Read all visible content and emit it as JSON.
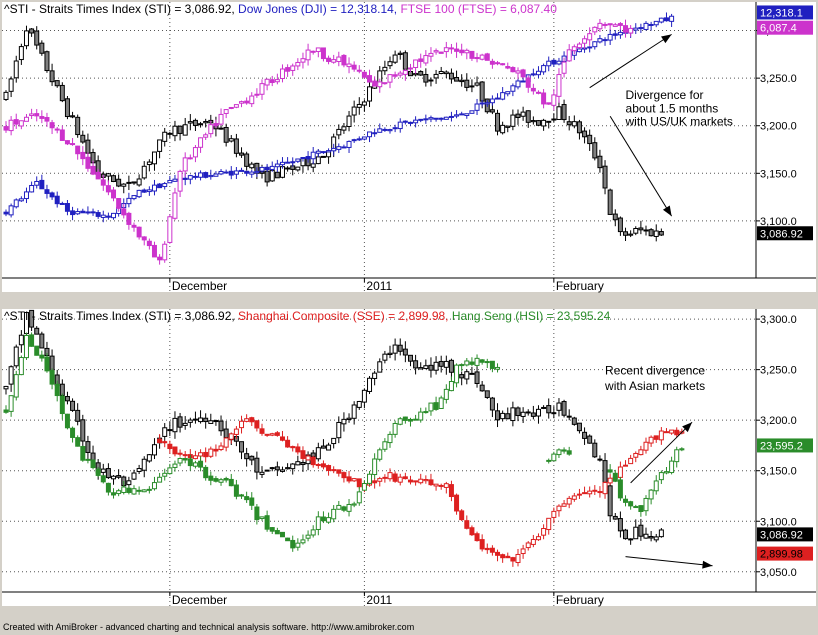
{
  "colors": {
    "background": "#ffffff",
    "frame": "#d4d0c8",
    "sti": "#000000",
    "dow": "#2020c0",
    "ftse": "#cc33cc",
    "sse": "#dd2020",
    "hsi": "#2a8c2a"
  },
  "footer": "Created with AmiBroker - advanced charting and technical analysis software. http://www.amibroker.com",
  "chart_data": [
    {
      "type": "candlestick",
      "panel": "top",
      "title_parts": [
        {
          "text": "^STI - Straits Times Index (STI) = 3,086.92, ",
          "color": "#000000"
        },
        {
          "text": "Dow Jones (DJI) = 12,318.14, ",
          "color": "#2020c0"
        },
        {
          "text": "FTSE 100 (FTSE) = 6,087.40",
          "color": "#cc33cc"
        }
      ],
      "ylim": [
        3040,
        3330
      ],
      "yticks": [
        3300,
        3250,
        3200,
        3150,
        3100
      ],
      "ytick_labels": [
        "3,300.0",
        "3,250.0",
        "3,200.0",
        "3,150.0",
        "3,100.0"
      ],
      "x_labels": [
        {
          "index": 32,
          "label": "December"
        },
        {
          "index": 70,
          "label": "2011"
        },
        {
          "index": 107,
          "label": "February"
        }
      ],
      "price_tags": [
        {
          "label": "12,318.1",
          "value": 3319,
          "bg": "#2020c0",
          "fg": "#ffffff"
        },
        {
          "label": "6,087.4",
          "value": 3303,
          "bg": "#cc33cc",
          "fg": "#ffffff"
        },
        {
          "label": "3,086.92",
          "value": 3087,
          "bg": "#000000",
          "fg": "#ffffff"
        }
      ],
      "annotations": [
        {
          "text": "Divergence for",
          "value": 3228,
          "index": 121
        },
        {
          "text": "about 1.5 months",
          "value": 3214,
          "index": 121
        },
        {
          "text": "with US/UK markets",
          "value": 3200,
          "index": 121
        }
      ],
      "arrows": [
        {
          "from": [
            114,
            3240
          ],
          "to": [
            130,
            3296
          ]
        },
        {
          "from": [
            118,
            3210
          ],
          "to": [
            130,
            3105
          ]
        }
      ],
      "series": [
        {
          "name": "STI",
          "color": "#000000",
          "hollow_fill": "#ffffff",
          "down_fill": "#808080",
          "segments": [
            {
              "start": 0,
              "open": 3230,
              "close": 3250,
              "noise": 12,
              "high_wick": 8,
              "low_wick": 8,
              "pts": [
                [
                  0,
                  3230
                ],
                [
                  4,
                  3305
                ],
                [
                  8,
                  3260
                ],
                [
                  12,
                  3215
                ],
                [
                  18,
                  3150
                ],
                [
                  24,
                  3135
                ],
                [
                  32,
                  3195
                ],
                [
                  40,
                  3205
                ],
                [
                  50,
                  3145
                ],
                [
                  56,
                  3155
                ],
                [
                  62,
                  3170
                ],
                [
                  66,
                  3200
                ],
                [
                  70,
                  3230
                ],
                [
                  76,
                  3278
                ],
                [
                  80,
                  3250
                ],
                [
                  86,
                  3255
                ],
                [
                  92,
                  3240
                ],
                [
                  96,
                  3200
                ],
                [
                  100,
                  3210
                ],
                [
                  104,
                  3205
                ],
                [
                  108,
                  3215
                ],
                [
                  112,
                  3195
                ],
                [
                  116,
                  3160
                ],
                [
                  118,
                  3110
                ],
                [
                  120,
                  3085
                ],
                [
                  124,
                  3090
                ],
                [
                  128,
                  3087
                ]
              ]
            }
          ]
        },
        {
          "name": "Dow Jones (DJI)",
          "color": "#2020c0",
          "hollow_fill": "#ffffff",
          "down_fill": "#2020c0",
          "segments": [
            {
              "start": 0,
              "pts": [
                [
                  0,
                  3110
                ],
                [
                  6,
                  3140
                ],
                [
                  12,
                  3110
                ],
                [
                  20,
                  3105
                ],
                [
                  26,
                  3130
                ],
                [
                  34,
                  3145
                ],
                [
                  42,
                  3150
                ],
                [
                  52,
                  3155
                ],
                [
                  60,
                  3170
                ],
                [
                  66,
                  3180
                ],
                [
                  72,
                  3195
                ],
                [
                  80,
                  3205
                ],
                [
                  88,
                  3210
                ],
                [
                  96,
                  3230
                ],
                [
                  104,
                  3260
                ],
                [
                  110,
                  3275
                ],
                [
                  116,
                  3290
                ],
                [
                  122,
                  3302
                ],
                [
                  130,
                  3313
                ]
              ],
              "noise": 6,
              "high_wick": 6,
              "low_wick": 6
            }
          ]
        },
        {
          "name": "FTSE 100 (FTSE)",
          "color": "#cc33cc",
          "hollow_fill": "#ffffff",
          "down_fill": "#cc33cc",
          "segments": [
            {
              "start": 0,
              "pts": [
                [
                  0,
                  3200
                ],
                [
                  6,
                  3210
                ],
                [
                  12,
                  3185
                ],
                [
                  18,
                  3145
                ],
                [
                  24,
                  3100
                ],
                [
                  30,
                  3055
                ],
                [
                  34,
                  3155
                ],
                [
                  42,
                  3210
                ],
                [
                  50,
                  3240
                ],
                [
                  56,
                  3265
                ],
                [
                  60,
                  3280
                ],
                [
                  68,
                  3260
                ],
                [
                  72,
                  3240
                ],
                [
                  80,
                  3268
                ],
                [
                  88,
                  3282
                ],
                [
                  96,
                  3265
                ],
                [
                  100,
                  3255
                ],
                [
                  106,
                  3220
                ],
                [
                  110,
                  3280
                ],
                [
                  116,
                  3310
                ],
                [
                  122,
                  3300
                ],
                [
                  130,
                  3305
                ]
              ],
              "noise": 10,
              "high_wick": 7,
              "low_wick": 7,
              "end": 122
            }
          ]
        }
      ]
    },
    {
      "type": "candlestick",
      "panel": "bottom",
      "title_parts": [
        {
          "text": "^STI - Straits Times Index (STI) = 3,086.92, ",
          "color": "#000000"
        },
        {
          "text": "Shanghai Composite (SSE) = 2,899.98, ",
          "color": "#dd2020"
        },
        {
          "text": "Hang Seng (HSI) = 23,595.24",
          "color": "#2a8c2a"
        }
      ],
      "ylim": [
        3030,
        3310
      ],
      "yticks": [
        3300,
        3250,
        3200,
        3150,
        3100,
        3050
      ],
      "ytick_labels": [
        "3,300.0",
        "3,250.0",
        "3,200.0",
        "3,150.0",
        "3,100.0",
        "3,050.0"
      ],
      "x_labels": [
        {
          "index": 32,
          "label": "December"
        },
        {
          "index": 70,
          "label": "2011"
        },
        {
          "index": 107,
          "label": "February"
        }
      ],
      "price_tags": [
        {
          "label": "23,595.2",
          "value": 3175,
          "bg": "#2a8c2a",
          "fg": "#ffffff"
        },
        {
          "label": "3,086.92",
          "value": 3087,
          "bg": "#000000",
          "fg": "#ffffff"
        },
        {
          "label": "2,899.98",
          "value": 3068,
          "bg": "#dd2020",
          "fg": "#000000"
        }
      ],
      "annotations": [
        {
          "text": "Recent divergence",
          "value": 3245,
          "index": 117
        },
        {
          "text": "with Asian markets",
          "value": 3230,
          "index": 117
        }
      ],
      "arrows": [
        {
          "from": [
            121,
            3065
          ],
          "to": [
            138,
            3056
          ]
        },
        {
          "from": [
            122,
            3138
          ],
          "to": [
            134,
            3198
          ]
        }
      ],
      "series": [
        {
          "name": "STI",
          "color": "#000000",
          "hollow_fill": "#ffffff",
          "down_fill": "#808080",
          "segments": [
            {
              "start": 0,
              "pts": [
                [
                  0,
                  3230
                ],
                [
                  4,
                  3305
                ],
                [
                  8,
                  3260
                ],
                [
                  12,
                  3215
                ],
                [
                  18,
                  3150
                ],
                [
                  24,
                  3135
                ],
                [
                  32,
                  3195
                ],
                [
                  40,
                  3205
                ],
                [
                  50,
                  3145
                ],
                [
                  56,
                  3155
                ],
                [
                  62,
                  3170
                ],
                [
                  66,
                  3200
                ],
                [
                  70,
                  3230
                ],
                [
                  76,
                  3278
                ],
                [
                  80,
                  3250
                ],
                [
                  86,
                  3255
                ],
                [
                  92,
                  3240
                ],
                [
                  96,
                  3200
                ],
                [
                  100,
                  3210
                ],
                [
                  104,
                  3205
                ],
                [
                  108,
                  3215
                ],
                [
                  112,
                  3195
                ],
                [
                  116,
                  3160
                ],
                [
                  118,
                  3110
                ],
                [
                  120,
                  3085
                ],
                [
                  124,
                  3090
                ],
                [
                  128,
                  3087
                ]
              ],
              "noise": 12,
              "high_wick": 8,
              "low_wick": 8
            }
          ]
        },
        {
          "name": "Shanghai Composite (SSE)",
          "color": "#dd2020",
          "hollow_fill": "#ffffff",
          "down_fill": "#dd2020",
          "segments": [
            {
              "start": 30,
              "pts": [
                [
                  30,
                  3180
                ],
                [
                  36,
                  3160
                ],
                [
                  42,
                  3175
                ],
                [
                  46,
                  3200
                ],
                [
                  52,
                  3185
                ],
                [
                  58,
                  3165
                ],
                [
                  64,
                  3150
                ],
                [
                  70,
                  3135
                ],
                [
                  74,
                  3145
                ],
                [
                  80,
                  3140
                ],
                [
                  86,
                  3135
                ],
                [
                  90,
                  3090
                ],
                [
                  94,
                  3070
                ],
                [
                  98,
                  3060
                ],
                [
                  102,
                  3075
                ],
                [
                  106,
                  3100
                ],
                [
                  110,
                  3125
                ],
                [
                  116,
                  3130
                ],
                [
                  122,
                  3160
                ],
                [
                  128,
                  3190
                ],
                [
                  132,
                  3188
                ]
              ],
              "noise": 8,
              "high_wick": 6,
              "low_wick": 6
            }
          ]
        },
        {
          "name": "Hang Seng (HSI)",
          "color": "#2a8c2a",
          "hollow_fill": "#ffffff",
          "down_fill": "#2a8c2a",
          "segments": [
            {
              "start": 0,
              "pts": [
                [
                  0,
                  3210
                ],
                [
                  4,
                  3280
                ],
                [
                  8,
                  3250
                ],
                [
                  14,
                  3170
                ],
                [
                  20,
                  3130
                ],
                [
                  28,
                  3130
                ],
                [
                  34,
                  3165
                ],
                [
                  38,
                  3150
                ],
                [
                  44,
                  3135
                ],
                [
                  50,
                  3100
                ],
                [
                  56,
                  3075
                ],
                [
                  62,
                  3105
                ],
                [
                  68,
                  3120
                ],
                [
                  72,
                  3160
                ],
                [
                  76,
                  3195
                ],
                [
                  80,
                  3205
                ],
                [
                  84,
                  3215
                ],
                [
                  88,
                  3250
                ],
                [
                  92,
                  3260
                ],
                [
                  96,
                  3250
                ]
              ],
              "noise": 9,
              "high_wick": 6,
              "low_wick": 6,
              "end": 96
            },
            {
              "start": 106,
              "pts": [
                [
                  106,
                  3160
                ],
                [
                  108,
                  3172
                ],
                [
                  110,
                  3165
                ]
              ],
              "noise": 3,
              "high_wick": 4,
              "low_wick": 4
            },
            {
              "start": 118,
              "pts": [
                [
                  118,
                  3150
                ],
                [
                  120,
                  3125
                ],
                [
                  124,
                  3112
                ],
                [
                  128,
                  3145
                ],
                [
                  132,
                  3175
                ]
              ],
              "noise": 7,
              "high_wick": 6,
              "low_wick": 6
            }
          ]
        }
      ]
    }
  ]
}
